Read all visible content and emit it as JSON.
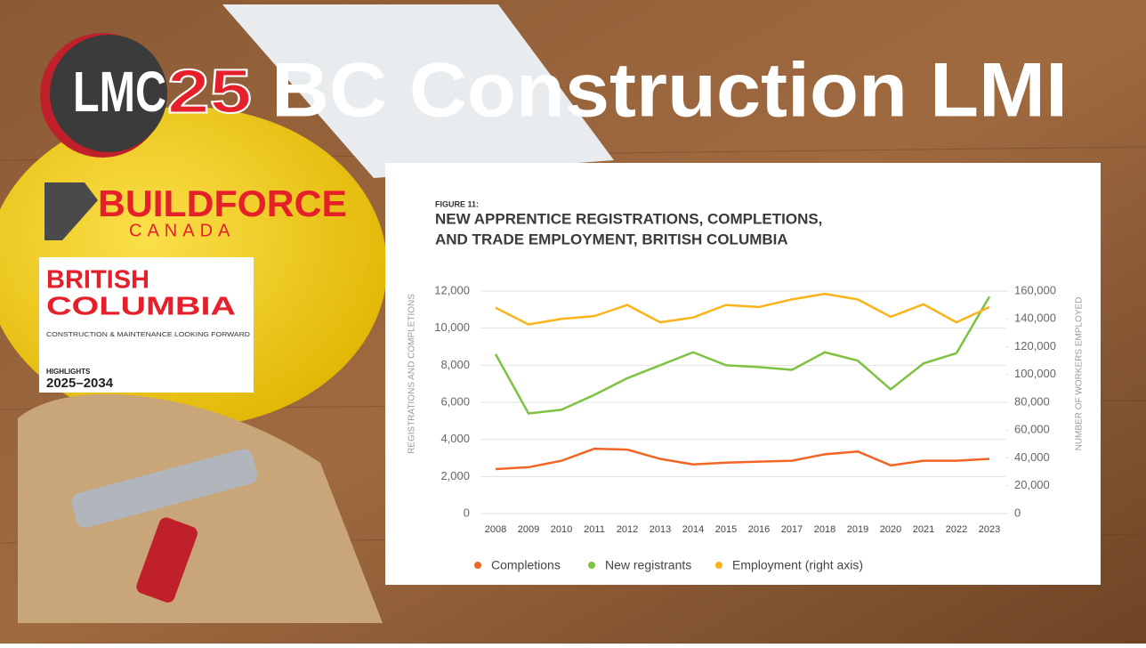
{
  "slide": {
    "title": "BC Construction LMI",
    "logo_text": "LMC",
    "logo_number": "25",
    "buildforce": "BUILDFORCE",
    "buildforce_sub": "CANADA",
    "report": {
      "title_1": "BRITISH",
      "title_2": "COLUMBIA",
      "subtitle": "CONSTRUCTION & MAINTENANCE LOOKING FORWARD",
      "kicker": "HIGHLIGHTS",
      "years": "2025–2034"
    }
  },
  "chart_data": {
    "type": "line",
    "figure_label": "FIGURE 11:",
    "title": [
      "NEW APPRENTICE REGISTRATIONS, COMPLETIONS,",
      "AND TRADE EMPLOYMENT, BRITISH COLUMBIA"
    ],
    "y_label": "REGISTRATIONS AND COMPLETIONS",
    "y2_label": "NUMBER OF WORKERS EMPLOYED",
    "categories": [
      "2008",
      "2009",
      "2010",
      "2011",
      "2012",
      "2013",
      "2014",
      "2015",
      "2016",
      "2017",
      "2018",
      "2019",
      "2020",
      "2021",
      "2022",
      "2023"
    ],
    "ylim": [
      0,
      12000
    ],
    "yticks": [
      0,
      {
        "value": 2000,
        "label": "2,000"
      },
      {
        "value": 4000,
        "label": "4,000"
      },
      {
        "value": 6000,
        "label": "6,000"
      },
      {
        "value": 8000,
        "label": "8,000"
      },
      {
        "value": 10000,
        "label": "10,000"
      },
      {
        "value": 12000,
        "label": "12,000"
      }
    ],
    "y2lim": [
      0,
      160000
    ],
    "y2ticks": [
      0,
      {
        "value": 20000,
        "label": "20,000"
      },
      {
        "value": 40000,
        "label": "40,000"
      },
      {
        "value": 60000,
        "label": "60,000"
      },
      {
        "value": 80000,
        "label": "80,000"
      },
      {
        "value": 100000,
        "label": "100,000"
      },
      {
        "value": 120000,
        "label": "120,000"
      },
      {
        "value": 140000,
        "label": "140,000"
      },
      {
        "value": 160000,
        "label": "160,000"
      }
    ],
    "grid": true,
    "series": [
      {
        "name": "Completions",
        "color": "#f26522",
        "values": [
          2400,
          2500,
          2850,
          3500,
          3450,
          2950,
          2650,
          2750,
          2800,
          2850,
          3200,
          3350,
          2600,
          2850,
          2850,
          2950
        ]
      },
      {
        "name": "New registrants",
        "color": "#7dc242",
        "values": [
          8600,
          5400,
          5600,
          6400,
          7300,
          8000,
          8700,
          8000,
          7900,
          7750,
          8700,
          8250,
          6700,
          8100,
          8650,
          11700
        ]
      },
      {
        "name": "Employment (right axis)",
        "color": "#fbb31b",
        "axis": "y2",
        "values": [
          148000,
          136000,
          140000,
          142000,
          150000,
          137500,
          141000,
          150000,
          148500,
          154000,
          158000,
          154000,
          141500,
          150500,
          137500,
          148500
        ]
      }
    ]
  }
}
